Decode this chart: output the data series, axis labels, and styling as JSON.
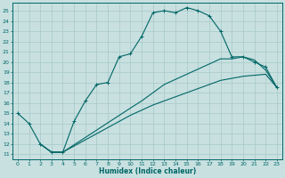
{
  "xlabel": "Humidex (Indice chaleur)",
  "ylabel": "",
  "xlim": [
    -0.5,
    23.5
  ],
  "ylim": [
    10.5,
    25.8
  ],
  "yticks": [
    11,
    12,
    13,
    14,
    15,
    16,
    17,
    18,
    19,
    20,
    21,
    22,
    23,
    24,
    25
  ],
  "xticks": [
    0,
    1,
    2,
    3,
    4,
    5,
    6,
    7,
    8,
    9,
    10,
    11,
    12,
    13,
    14,
    15,
    16,
    17,
    18,
    19,
    20,
    21,
    22,
    23
  ],
  "bg_color": "#c8e0e0",
  "grid_color": "#a8c8c8",
  "line_color": "#006666",
  "line1_x": [
    0,
    1,
    2,
    3,
    4,
    5,
    6,
    7,
    8,
    9,
    10,
    11,
    12,
    13,
    14,
    15,
    16,
    17,
    18,
    19,
    20,
    21,
    22,
    23
  ],
  "line1_y": [
    15.0,
    14.0,
    12.0,
    11.2,
    11.2,
    14.2,
    16.2,
    17.8,
    18.0,
    20.5,
    20.8,
    22.5,
    24.8,
    25.0,
    24.8,
    25.3,
    25.0,
    24.5,
    23.0,
    20.5,
    20.5,
    20.0,
    19.5,
    17.5
  ],
  "line2_x": [
    2,
    3,
    4,
    10,
    11,
    12,
    13,
    14,
    15,
    16,
    17,
    18,
    19,
    20,
    21,
    22,
    23
  ],
  "line2_y": [
    12.0,
    11.2,
    11.2,
    15.5,
    16.2,
    17.0,
    17.8,
    18.3,
    18.8,
    19.3,
    19.8,
    20.3,
    20.3,
    20.5,
    20.2,
    19.2,
    17.5
  ],
  "line3_x": [
    2,
    3,
    4,
    10,
    11,
    12,
    13,
    14,
    15,
    16,
    17,
    18,
    19,
    20,
    21,
    22,
    23
  ],
  "line3_y": [
    12.0,
    11.2,
    11.2,
    14.8,
    15.3,
    15.8,
    16.2,
    16.6,
    17.0,
    17.4,
    17.8,
    18.2,
    18.4,
    18.6,
    18.7,
    18.8,
    17.5
  ]
}
